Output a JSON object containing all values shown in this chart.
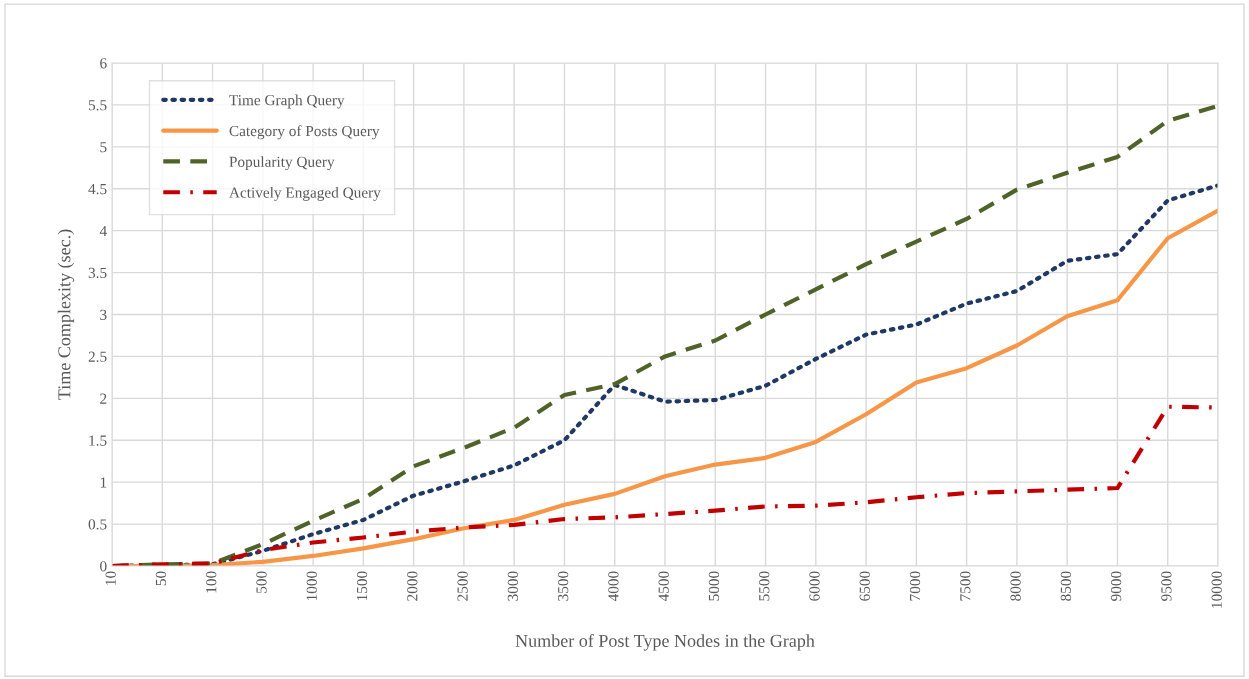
{
  "chart_data": {
    "type": "line",
    "xlabel": "Number of Post Type Nodes in the Graph",
    "ylabel": "Time Complexity (sec.)",
    "categories": [
      "10",
      "50",
      "100",
      "500",
      "1000",
      "1500",
      "2000",
      "2500",
      "3000",
      "3500",
      "4000",
      "4500",
      "5000",
      "5500",
      "6000",
      "6500",
      "7000",
      "7500",
      "8000",
      "8500",
      "9000",
      "9500",
      "10000"
    ],
    "series": [
      {
        "name": "Time Graph Query",
        "color": "#203864",
        "line_style": "dotted",
        "values": [
          0,
          0.01,
          0.02,
          0.18,
          0.38,
          0.55,
          0.84,
          1.01,
          1.2,
          1.5,
          2.16,
          1.96,
          1.98,
          2.15,
          2.47,
          2.76,
          2.88,
          3.13,
          3.28,
          3.64,
          3.72,
          4.36,
          4.54
        ]
      },
      {
        "name": "Category of Posts Query",
        "color": "#f79646",
        "line_style": "solid",
        "values": [
          0,
          0,
          0.01,
          0.05,
          0.12,
          0.21,
          0.32,
          0.45,
          0.55,
          0.73,
          0.86,
          1.07,
          1.21,
          1.29,
          1.48,
          1.81,
          2.19,
          2.36,
          2.63,
          2.98,
          3.17,
          3.91,
          4.24
        ]
      },
      {
        "name": "Popularity Query",
        "color": "#4f6228",
        "line_style": "dashed",
        "values": [
          0,
          0.02,
          0.03,
          0.26,
          0.54,
          0.8,
          1.19,
          1.41,
          1.65,
          2.04,
          2.17,
          2.5,
          2.69,
          3.0,
          3.3,
          3.6,
          3.87,
          4.14,
          4.49,
          4.69,
          4.88,
          5.31,
          5.49
        ]
      },
      {
        "name": "Actively Engaged Query",
        "color": "#c00000",
        "line_style": "dashdot",
        "values": [
          0,
          0.02,
          0.03,
          0.19,
          0.28,
          0.34,
          0.41,
          0.46,
          0.49,
          0.56,
          0.58,
          0.62,
          0.66,
          0.71,
          0.72,
          0.76,
          0.82,
          0.87,
          0.89,
          0.91,
          0.93,
          1.9,
          1.89
        ]
      }
    ],
    "ylim": [
      0,
      6
    ],
    "yticks": [
      0,
      0.5,
      1,
      1.5,
      2,
      2.5,
      3,
      3.5,
      4,
      4.5,
      5,
      5.5,
      6
    ],
    "grid": true,
    "legend": "top left",
    "marker": "none"
  }
}
